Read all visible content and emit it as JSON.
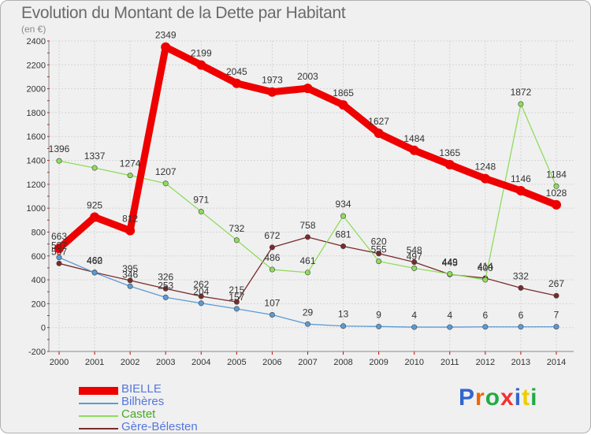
{
  "title": "Evolution du Montant de la Dette par Habitant",
  "subtitle": "(en €)",
  "logo": "Proxiti",
  "chart_data": {
    "type": "line",
    "x": [
      "2000",
      "2001",
      "2002",
      "2003",
      "2004",
      "2005",
      "2006",
      "2007",
      "2008",
      "2009",
      "2010",
      "2011",
      "2012",
      "2013",
      "2014"
    ],
    "ylim": [
      -200,
      2400
    ],
    "yticks": [
      "-200",
      "0",
      "200",
      "400",
      "600",
      "800",
      "1000",
      "1200",
      "1400",
      "1600",
      "1800",
      "2000",
      "2200",
      "2400"
    ],
    "grid": true,
    "legend_position": "bottom-left",
    "series": [
      {
        "name": "BIELLE",
        "color": "#ee0000",
        "values": [
          663,
          925,
          812,
          2349,
          2199,
          2045,
          1973,
          2003,
          1865,
          1627,
          1484,
          1365,
          1248,
          1146,
          1028
        ]
      },
      {
        "name": "Bilhères",
        "color": "#5b9bd5",
        "values": [
          587,
          460,
          346,
          253,
          204,
          157,
          107,
          29,
          13,
          9,
          4,
          4,
          6,
          6,
          7
        ]
      },
      {
        "name": "Castet",
        "color": "#8fdc5c",
        "values": [
          1396,
          1337,
          1274,
          1207,
          971,
          732,
          486,
          461,
          934,
          555,
          497,
          449,
          400,
          1872,
          1184
        ]
      },
      {
        "name": "Gère-Bélesten",
        "color": "#7a2a2a",
        "values": [
          537,
          462,
          395,
          326,
          262,
          215,
          672,
          758,
          681,
          620,
          548,
          445,
          414,
          332,
          267
        ]
      }
    ]
  }
}
